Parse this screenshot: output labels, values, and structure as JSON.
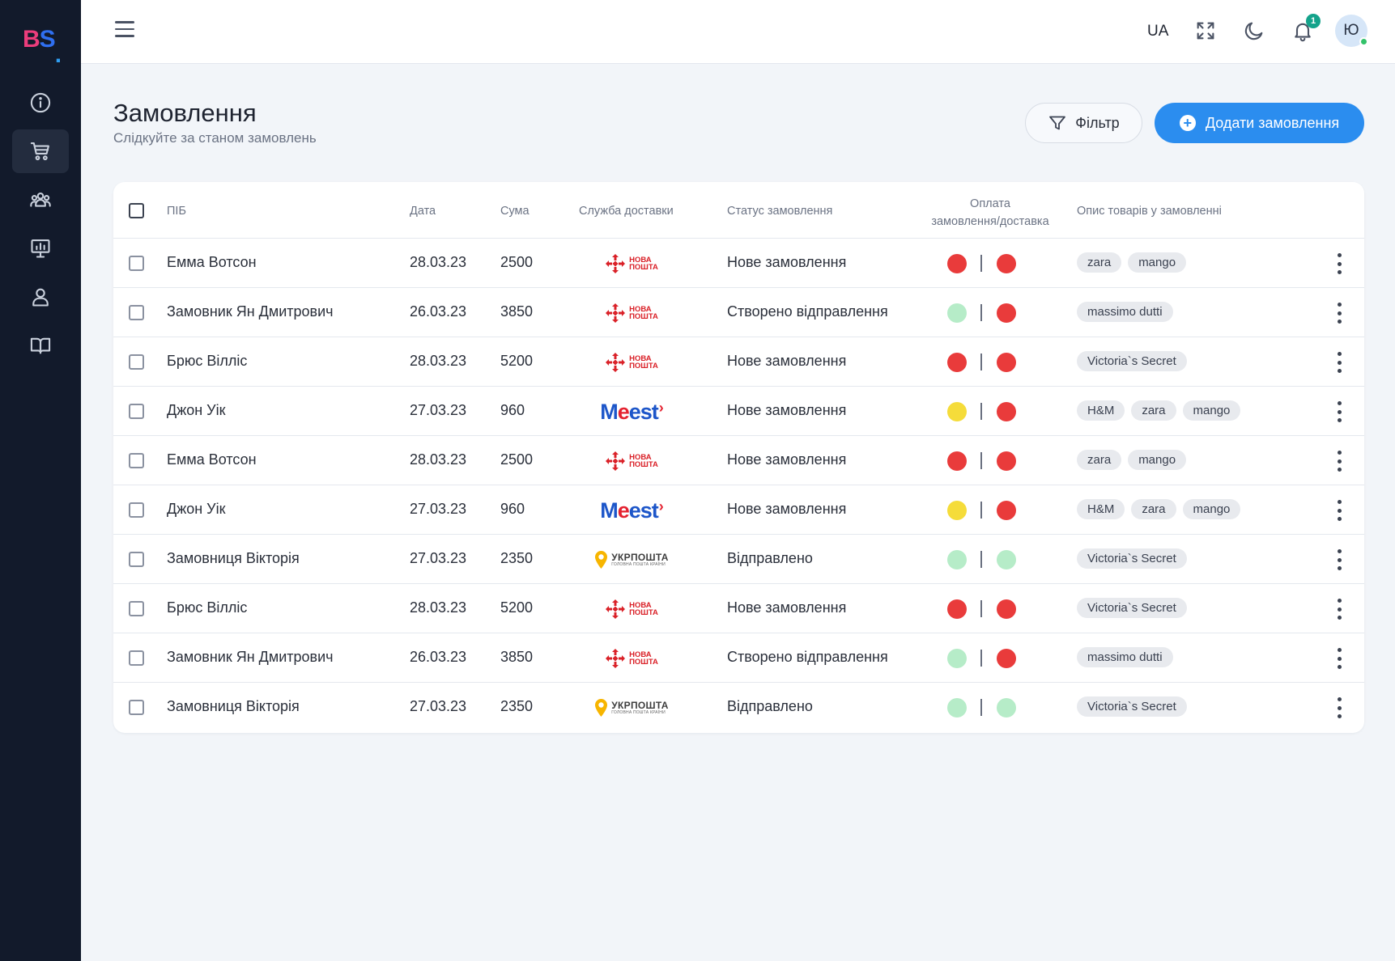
{
  "app": {
    "logo_b": "B",
    "logo_s": "S",
    "logo_dot": "."
  },
  "colors": {
    "accent": "#2b8def",
    "status_red": "#e93b3b",
    "status_yellow": "#f5dc3a",
    "status_green": "#b6ecc8",
    "sidebar": "#121a2b"
  },
  "sidebar": {
    "items": [
      {
        "name": "info",
        "icon": "info-icon",
        "active": false
      },
      {
        "name": "orders",
        "icon": "cart-icon",
        "active": true
      },
      {
        "name": "clients",
        "icon": "users-icon",
        "active": false
      },
      {
        "name": "analytics",
        "icon": "presentation-chart-icon",
        "active": false
      },
      {
        "name": "profile",
        "icon": "user-icon",
        "active": false
      },
      {
        "name": "docs",
        "icon": "book-icon",
        "active": false
      }
    ]
  },
  "topbar": {
    "language": "UA",
    "notifications_count": "1",
    "avatar_initial": "Ю"
  },
  "header": {
    "title": "Замовлення",
    "subtitle": "Слідкуйте за станом замовлень",
    "filter_label": "Фільтр",
    "add_label": "Додати замовлення"
  },
  "table": {
    "columns": {
      "name": "ПІБ",
      "date": "Дата",
      "sum": "Сума",
      "delivery": "Служба доставки",
      "status": "Статус замовлення",
      "payment_line1": "Оплата",
      "payment_line2": "замовлення/доставка",
      "items": "Опис товарів у замовленні"
    },
    "carriers": {
      "nova": {
        "line1": "НОВА",
        "line2": "ПОШТА"
      },
      "meest": {
        "m": "M",
        "e1": "e",
        "rest": "est",
        "arrow": "›"
      },
      "ukr": {
        "line1": "УКРПОШТА",
        "line2": "ГОЛОВНА ПОШТА КРАЇНИ"
      }
    },
    "rows": [
      {
        "name": "Емма Вотсон",
        "date": "28.03.23",
        "sum": "2500",
        "carrier": "nova",
        "status": "Нове замовлення",
        "pay": "red",
        "ship": "red",
        "tags": [
          "zara",
          "mango"
        ]
      },
      {
        "name": "Замовник Ян Дмитрович",
        "date": "26.03.23",
        "sum": "3850",
        "carrier": "nova",
        "status": "Створено відправлення",
        "pay": "green",
        "ship": "red",
        "tags": [
          "massimo dutti"
        ]
      },
      {
        "name": "Брюс Вілліс",
        "date": "28.03.23",
        "sum": "5200",
        "carrier": "nova",
        "status": "Нове замовлення",
        "pay": "red",
        "ship": "red",
        "tags": [
          "Victoria`s Secret"
        ]
      },
      {
        "name": "Джон Уік",
        "date": "27.03.23",
        "sum": "960",
        "carrier": "meest",
        "status": "Нове замовлення",
        "pay": "yellow",
        "ship": "red",
        "tags": [
          "H&M",
          "zara",
          "mango"
        ]
      },
      {
        "name": "Емма Вотсон",
        "date": "28.03.23",
        "sum": "2500",
        "carrier": "nova",
        "status": "Нове замовлення",
        "pay": "red",
        "ship": "red",
        "tags": [
          "zara",
          "mango"
        ]
      },
      {
        "name": "Джон Уік",
        "date": "27.03.23",
        "sum": "960",
        "carrier": "meest",
        "status": "Нове замовлення",
        "pay": "yellow",
        "ship": "red",
        "tags": [
          "H&M",
          "zara",
          "mango"
        ]
      },
      {
        "name": "Замовниця Вікторія",
        "date": "27.03.23",
        "sum": "2350",
        "carrier": "ukr",
        "status": "Відправлено",
        "pay": "green",
        "ship": "green",
        "tags": [
          "Victoria`s Secret"
        ]
      },
      {
        "name": "Брюс Вілліс",
        "date": "28.03.23",
        "sum": "5200",
        "carrier": "nova",
        "status": "Нове замовлення",
        "pay": "red",
        "ship": "red",
        "tags": [
          "Victoria`s Secret"
        ]
      },
      {
        "name": "Замовник Ян Дмитрович",
        "date": "26.03.23",
        "sum": "3850",
        "carrier": "nova",
        "status": "Створено відправлення",
        "pay": "green",
        "ship": "red",
        "tags": [
          "massimo dutti"
        ]
      },
      {
        "name": "Замовниця Вікторія",
        "date": "27.03.23",
        "sum": "2350",
        "carrier": "ukr",
        "status": "Відправлено",
        "pay": "green",
        "ship": "green",
        "tags": [
          "Victoria`s Secret"
        ]
      }
    ]
  }
}
